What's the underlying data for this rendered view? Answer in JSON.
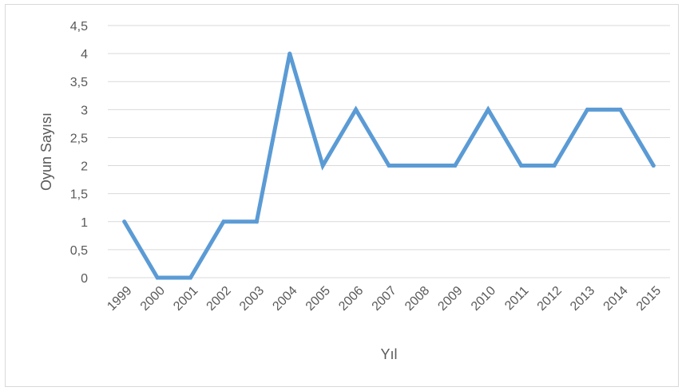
{
  "chart_data": {
    "type": "line",
    "title": "",
    "xlabel": "Yıl",
    "ylabel": "Oyun Sayısı",
    "categories": [
      "1999",
      "2000",
      "2001",
      "2002",
      "2003",
      "2004",
      "2005",
      "2006",
      "2007",
      "2008",
      "2009",
      "2010",
      "2011",
      "2012",
      "2013",
      "2014",
      "2015"
    ],
    "series": [
      {
        "values": [
          1,
          0,
          0,
          1,
          1,
          4,
          2,
          3,
          2,
          2,
          2,
          3,
          2,
          2,
          3,
          3,
          2
        ]
      }
    ],
    "ylim": [
      0,
      4.5
    ],
    "yticks": [
      "0",
      "0,5",
      "1",
      "1,5",
      "2",
      "2,5",
      "3",
      "3,5",
      "4",
      "4,5"
    ],
    "grid": true,
    "legend": "none",
    "line_color": "#5b9bd5",
    "grid_color": "#d9d9d9"
  }
}
